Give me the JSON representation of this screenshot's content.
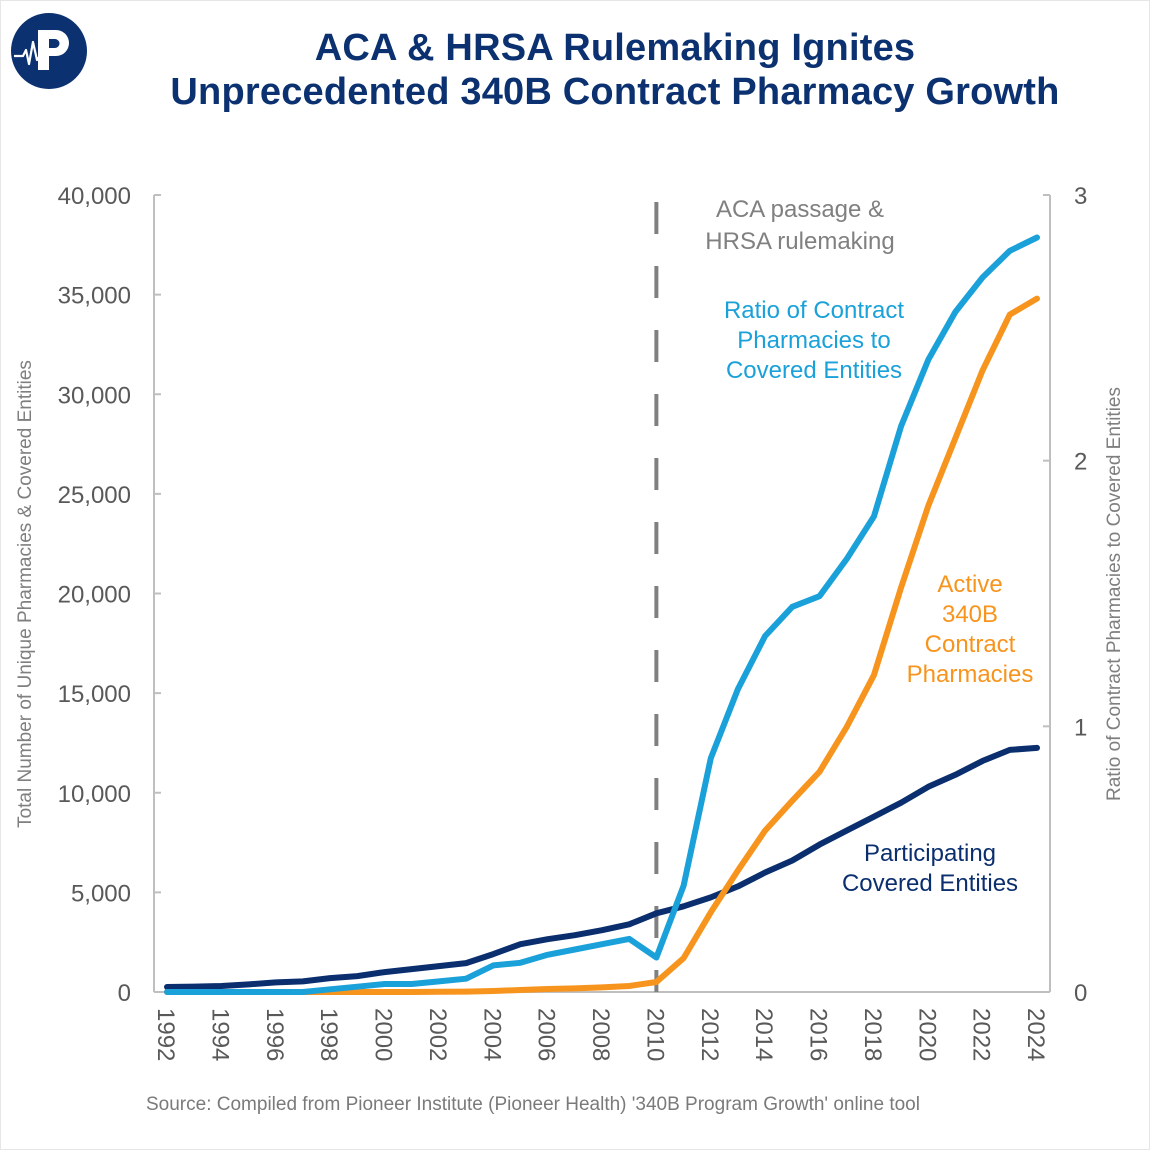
{
  "header": {
    "title_line1": "ACA & HRSA Rulemaking Ignites",
    "title_line2": "Unprecedented 340B Contract Pharmacy Growth",
    "logo_letter": "P"
  },
  "colors": {
    "title": "#0b3170",
    "covered_entities": "#0b2f6e",
    "contract_pharmacies": "#f7941d",
    "ratio": "#1ba1d9",
    "axis": "#bfbfbf",
    "event_line": "#808080",
    "event_text": "#808080"
  },
  "chart_data": {
    "type": "line",
    "title": "ACA & HRSA Rulemaking Ignites Unprecedented 340B Contract Pharmacy Growth",
    "xlabel": "",
    "ylabel": "Total Number of Unique  Pharmacies & Covered Entities",
    "y2label": "Ratio of Contract Pharmacies to Covered Entities",
    "xlim": [
      1992,
      2024
    ],
    "ylim": [
      0,
      40000
    ],
    "y2lim": [
      0,
      3
    ],
    "grid": false,
    "legend": "inline-labels",
    "x": [
      1992,
      1993,
      1994,
      1995,
      1996,
      1997,
      1998,
      1999,
      2000,
      2001,
      2002,
      2003,
      2004,
      2005,
      2006,
      2007,
      2008,
      2009,
      2010,
      2011,
      2012,
      2013,
      2014,
      2015,
      2016,
      2017,
      2018,
      2019,
      2020,
      2021,
      2022,
      2023,
      2024
    ],
    "x_tick_labels": [
      "1992",
      "1994",
      "1996",
      "1998",
      "2000",
      "2002",
      "2004",
      "2006",
      "2008",
      "2010",
      "2012",
      "2014",
      "2016",
      "2018",
      "2020",
      "2022",
      "2024"
    ],
    "y_tick_labels": [
      "0",
      "5,000",
      "10,000",
      "15,000",
      "20,000",
      "25,000",
      "30,000",
      "35,000",
      "40,000"
    ],
    "y_ticks": [
      0,
      5000,
      10000,
      15000,
      20000,
      25000,
      30000,
      35000,
      40000
    ],
    "y2_tick_labels": [
      "0",
      "1",
      "2",
      "3"
    ],
    "y2_ticks": [
      0,
      1,
      2,
      3
    ],
    "series": [
      {
        "name": "Participating Covered Entities",
        "label_lines": [
          "Participating",
          "Covered Entities"
        ],
        "axis": "left",
        "color_key": "covered_entities",
        "values": [
          250,
          270,
          300,
          380,
          480,
          530,
          700,
          800,
          1000,
          1150,
          1300,
          1450,
          1900,
          2400,
          2650,
          2850,
          3100,
          3400,
          3950,
          4300,
          4750,
          5300,
          6000,
          6600,
          7400,
          8100,
          8800,
          9500,
          10300,
          10900,
          11600,
          12150,
          12250
        ]
      },
      {
        "name": "Active 340B Contract Pharmacies",
        "label_lines": [
          "Active",
          "340B",
          "Contract",
          "Pharmacies"
        ],
        "axis": "left",
        "color_key": "contract_pharmacies",
        "values": [
          0,
          0,
          0,
          0,
          0,
          0,
          0,
          0,
          0,
          0,
          10,
          20,
          50,
          100,
          150,
          180,
          230,
          300,
          500,
          1700,
          4000,
          6100,
          8100,
          9600,
          11050,
          13300,
          15900,
          20300,
          24400,
          27800,
          31200,
          34000,
          34800
        ]
      },
      {
        "name": "Ratio of Contract Pharmacies to Covered Entities",
        "label_lines": [
          "Ratio of Contract",
          "Pharmacies to",
          "Covered Entities"
        ],
        "axis": "right",
        "color_key": "ratio",
        "values": [
          0,
          0,
          0,
          0,
          0,
          0,
          0.01,
          0.02,
          0.03,
          0.03,
          0.04,
          0.05,
          0.1,
          0.11,
          0.14,
          0.16,
          0.18,
          0.2,
          0.13,
          0.4,
          0.88,
          1.14,
          1.34,
          1.45,
          1.49,
          1.63,
          1.79,
          2.13,
          2.38,
          2.56,
          2.69,
          2.79,
          2.84
        ]
      }
    ],
    "annotations": [
      {
        "type": "vertical-dashed-line",
        "x": 2010,
        "text_lines": [
          "ACA passage &",
          "HRSA rulemaking"
        ]
      }
    ]
  },
  "footer": {
    "source": "Source: Compiled from Pioneer Institute (Pioneer Health) '340B Program Growth' online tool"
  }
}
